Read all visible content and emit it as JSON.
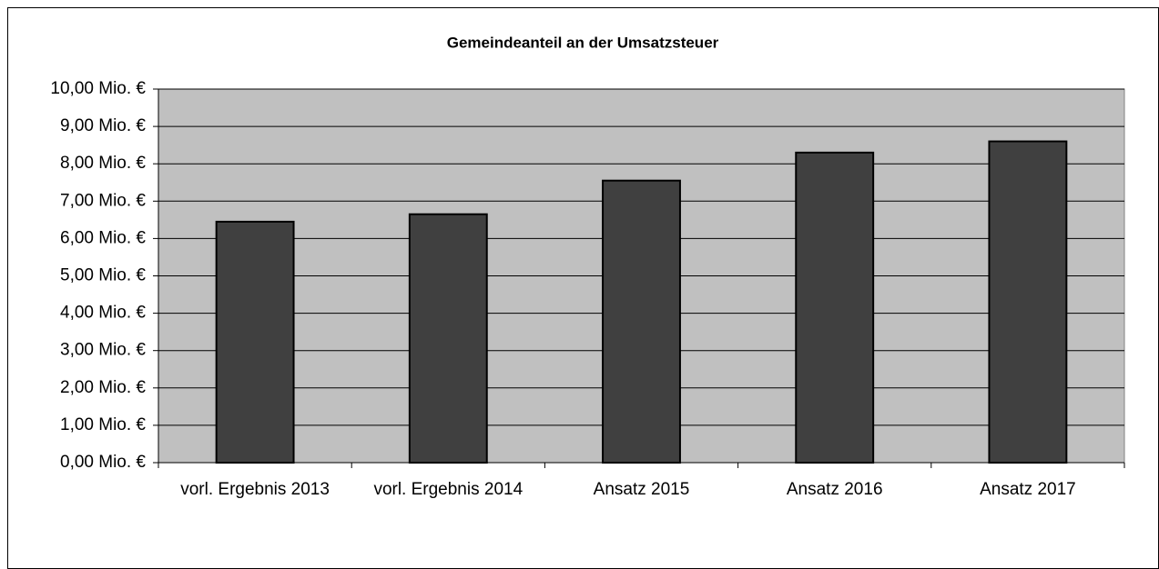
{
  "chart_data": {
    "type": "bar",
    "title": "Gemeindeanteil an der Umsatzsteuer",
    "categories": [
      "vorl. Ergebnis 2013",
      "vorl. Ergebnis 2014",
      "Ansatz 2015",
      "Ansatz 2016",
      "Ansatz 2017"
    ],
    "values": [
      6.45,
      6.65,
      7.55,
      8.3,
      8.6
    ],
    "color": "#404040",
    "ylim": [
      0,
      10
    ],
    "yticks": [
      {
        "value": 0,
        "label": "0,00 Mio. €"
      },
      {
        "value": 1,
        "label": "1,00 Mio. €"
      },
      {
        "value": 2,
        "label": "2,00 Mio. €"
      },
      {
        "value": 3,
        "label": "3,00 Mio. €"
      },
      {
        "value": 4,
        "label": "4,00 Mio. €"
      },
      {
        "value": 5,
        "label": "5,00 Mio. €"
      },
      {
        "value": 6,
        "label": "6,00 Mio. €"
      },
      {
        "value": 7,
        "label": "7,00 Mio. €"
      },
      {
        "value": 8,
        "label": "8,00 Mio. €"
      },
      {
        "value": 9,
        "label": "9,00 Mio. €"
      },
      {
        "value": 10,
        "label": "10,00 Mio. €"
      }
    ],
    "grid": true
  }
}
